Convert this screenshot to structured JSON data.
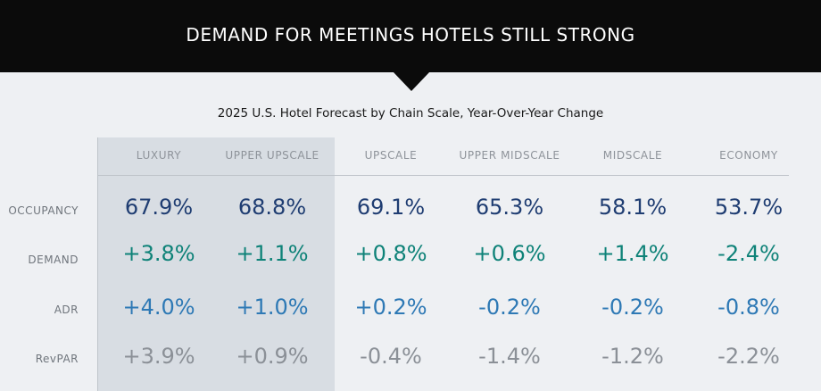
{
  "header": {
    "title": "DEMAND FOR MEETINGS HOTELS STILL STRONG"
  },
  "subtitle": "2025 U.S. Hotel Forecast by Chain Scale, Year-Over-Year Change",
  "colors": {
    "occupancy": "#1f3d72",
    "demand": "#0e8278",
    "adr": "#2e79b5",
    "revpar": "#8b9097",
    "highlight": "#d8dde3"
  },
  "chart_data": {
    "type": "table",
    "title": "2025 U.S. Hotel Forecast by Chain Scale, Year-Over-Year Change",
    "columns": [
      "LUXURY",
      "UPPER UPSCALE",
      "UPSCALE",
      "UPPER MIDSCALE",
      "MIDSCALE",
      "ECONOMY"
    ],
    "highlighted_columns": [
      "LUXURY",
      "UPPER UPSCALE"
    ],
    "rows": [
      {
        "label": "OCCUPANCY",
        "values": [
          "67.9%",
          "68.8%",
          "69.1%",
          "65.3%",
          "58.1%",
          "53.7%"
        ]
      },
      {
        "label": "DEMAND",
        "values": [
          "+3.8%",
          "+1.1%",
          "+0.8%",
          "+0.6%",
          "+1.4%",
          "-2.4%"
        ]
      },
      {
        "label": "ADR",
        "values": [
          "+4.0%",
          "+1.0%",
          "+0.2%",
          "-0.2%",
          "-0.2%",
          "-0.8%"
        ]
      },
      {
        "label": "RevPAR",
        "values": [
          "+3.9%",
          "+0.9%",
          "-0.4%",
          "-1.4%",
          "-1.2%",
          "-2.2%"
        ]
      }
    ]
  }
}
